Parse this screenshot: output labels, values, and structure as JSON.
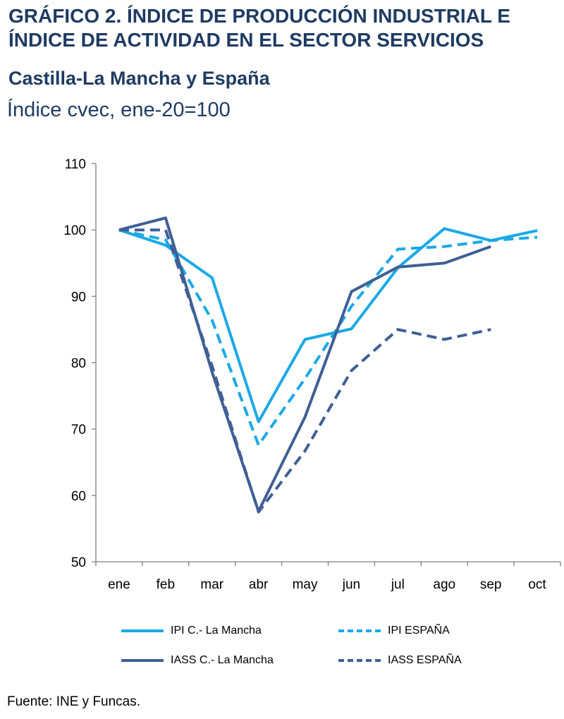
{
  "header": {
    "title": "GRÁFICO 2. ÍNDICE DE PRODUCCIÓN INDUSTRIAL E ÍNDICE DE ACTIVIDAD EN EL SECTOR SERVICIOS",
    "subtitle": "Castilla-La Mancha y España",
    "unit": "Índice cvec, ene-20=100"
  },
  "source": "Fuente: INE y Funcas.",
  "chart_data": {
    "type": "line",
    "categories": [
      "ene",
      "feb",
      "mar",
      "abr",
      "may",
      "jun",
      "jul",
      "ago",
      "sep",
      "oct"
    ],
    "ylim": [
      50,
      110
    ],
    "yticks": [
      50,
      60,
      70,
      80,
      90,
      100,
      110
    ],
    "grid": false,
    "legend_position": "bottom",
    "series": [
      {
        "name": "IPI C.- La Mancha",
        "color": "#1aa9e6",
        "dash": false,
        "values": [
          100,
          97.7,
          92.8,
          71.1,
          83.5,
          85.1,
          94.3,
          100.2,
          98.4,
          99.9
        ]
      },
      {
        "name": "IPI ESPAÑA",
        "color": "#1aa9e6",
        "dash": true,
        "values": [
          100,
          98.5,
          86.4,
          67.6,
          77.6,
          88.5,
          97.1,
          97.5,
          98.4,
          98.9
        ]
      },
      {
        "name": "IASS C.- La Mancha",
        "color": "#3f5f95",
        "dash": false,
        "values": [
          100,
          101.8,
          78.6,
          57.6,
          71.8,
          90.7,
          94.4,
          95.0,
          97.5,
          null
        ]
      },
      {
        "name": "IASS ESPAÑA",
        "color": "#3f5f95",
        "dash": true,
        "values": [
          100,
          100,
          79.5,
          57.5,
          66.7,
          78.8,
          85.0,
          83.5,
          85.0,
          null
        ]
      }
    ]
  }
}
